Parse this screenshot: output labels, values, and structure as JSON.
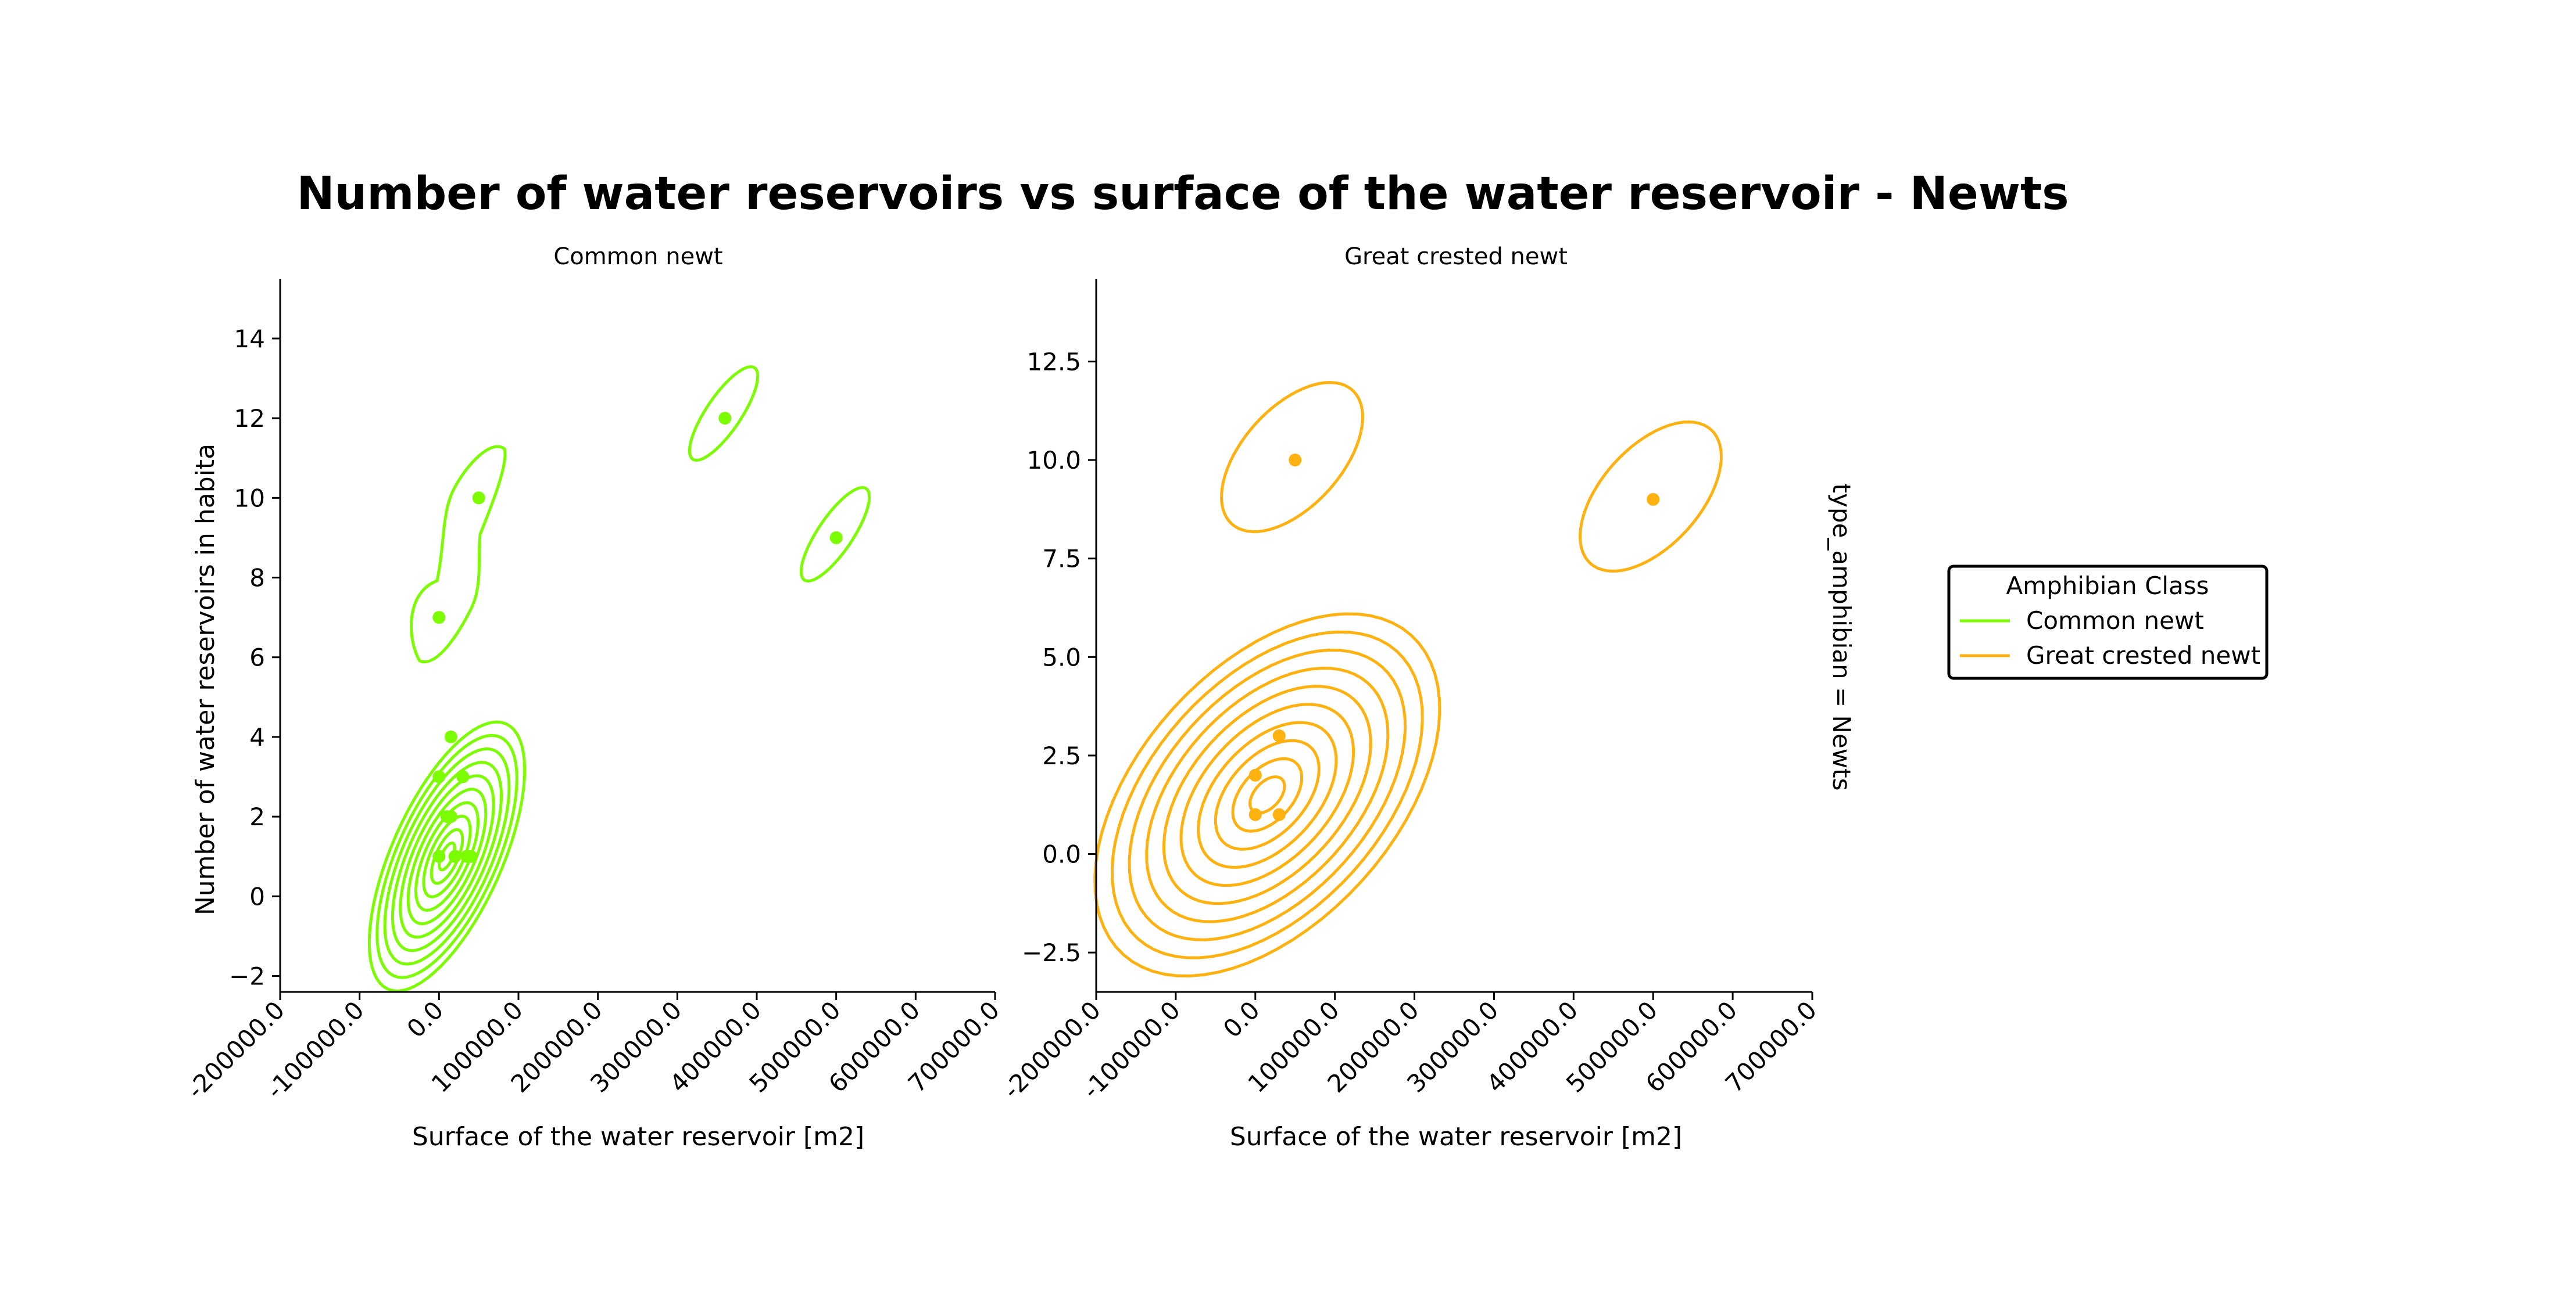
{
  "figure": {
    "title": "Number of water reservoirs vs surface of the water reservoir - Newts",
    "row_label": "type_amphibian = Newts",
    "legend": {
      "title": "Amphibian Class",
      "entries": [
        {
          "label": "Common newt",
          "color": "#7CFC00"
        },
        {
          "label": "Great crested newt",
          "color": "#FFB10F"
        }
      ]
    }
  },
  "chart_data": [
    {
      "type": "scatter",
      "title": "Common newt",
      "xlabel": "Surface of the water reservoir [m2]",
      "ylabel": "Number of water reservoirs in habita",
      "xlim": [
        -200000,
        700000
      ],
      "ylim": [
        -2.4,
        15.5
      ],
      "xticks": [
        -200000,
        -100000,
        0,
        100000,
        200000,
        300000,
        400000,
        500000,
        600000,
        700000
      ],
      "xtick_labels": [
        "-200000.0",
        "-100000.0",
        "0.0",
        "100000.0",
        "200000.0",
        "300000.0",
        "400000.0",
        "500000.0",
        "600000.0",
        "700000.0"
      ],
      "yticks": [
        -2,
        0,
        2,
        4,
        6,
        8,
        10,
        12,
        14
      ],
      "ytick_labels": [
        "−2",
        "0",
        "2",
        "4",
        "6",
        "8",
        "10",
        "12",
        "14"
      ],
      "color": "#7CFC00",
      "grid": false,
      "points": [
        {
          "x": 0,
          "y": 7
        },
        {
          "x": 50000,
          "y": 10
        },
        {
          "x": 360000,
          "y": 12
        },
        {
          "x": 500000,
          "y": 9
        },
        {
          "x": 15000,
          "y": 4
        },
        {
          "x": 0,
          "y": 3
        },
        {
          "x": 30000,
          "y": 3
        },
        {
          "x": 10000,
          "y": 2
        },
        {
          "x": 15000,
          "y": 2
        },
        {
          "x": 0,
          "y": 1
        },
        {
          "x": 20000,
          "y": 1
        },
        {
          "x": 35000,
          "y": 1
        },
        {
          "x": 40000,
          "y": 1
        }
      ],
      "kde_main": {
        "center_x": 10000,
        "center_y": 1.0,
        "levels": 10
      }
    },
    {
      "type": "scatter",
      "title": "Great crested newt",
      "xlabel": "Surface of the water reservoir [m2]",
      "ylabel": "",
      "xlim": [
        -200000,
        700000
      ],
      "ylim": [
        -3.5,
        14.6
      ],
      "xticks": [
        -200000,
        -100000,
        0,
        100000,
        200000,
        300000,
        400000,
        500000,
        600000,
        700000
      ],
      "xtick_labels": [
        "-200000.0",
        "-100000.0",
        "0.0",
        "100000.0",
        "200000.0",
        "300000.0",
        "400000.0",
        "500000.0",
        "600000.0",
        "700000.0"
      ],
      "yticks": [
        -2.5,
        0,
        2.5,
        5,
        7.5,
        10,
        12.5
      ],
      "ytick_labels": [
        "−2.5",
        "0.0",
        "2.5",
        "5.0",
        "7.5",
        "10.0",
        "12.5"
      ],
      "color": "#FFB10F",
      "grid": false,
      "points": [
        {
          "x": 50000,
          "y": 10
        },
        {
          "x": 500000,
          "y": 9
        },
        {
          "x": 30000,
          "y": 3
        },
        {
          "x": 0,
          "y": 2
        },
        {
          "x": 0,
          "y": 1
        },
        {
          "x": 30000,
          "y": 1
        }
      ],
      "kde_main": {
        "center_x": 15000,
        "center_y": 1.5,
        "levels": 10
      }
    }
  ]
}
